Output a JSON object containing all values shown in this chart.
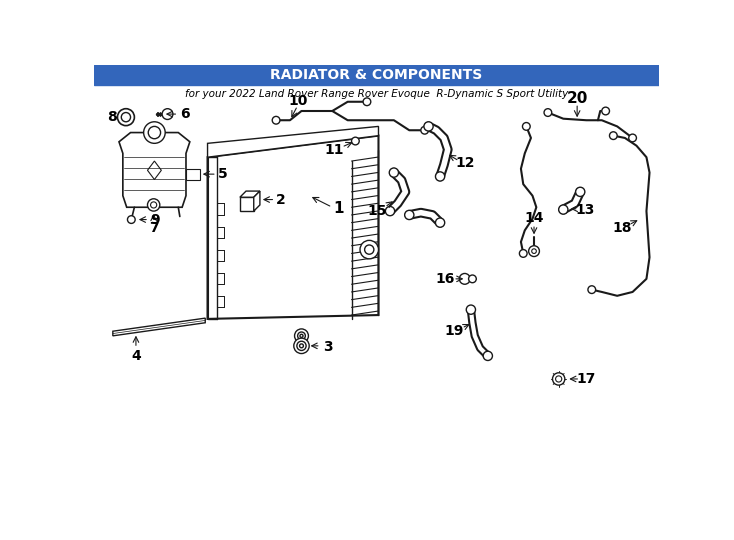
{
  "background_color": "#ffffff",
  "line_color": "#1a1a1a",
  "text_color": "#000000",
  "fig_width": 7.34,
  "fig_height": 5.4,
  "dpi": 100,
  "header": {
    "title": "RADIATOR & COMPONENTS",
    "subtitle": "for your 2022 Land Rover Range Rover Evoque  R-Dynamic S Sport Utility",
    "title_bg": "#3366bb",
    "title_color": "#ffffff",
    "subtitle_color": "#000000"
  }
}
